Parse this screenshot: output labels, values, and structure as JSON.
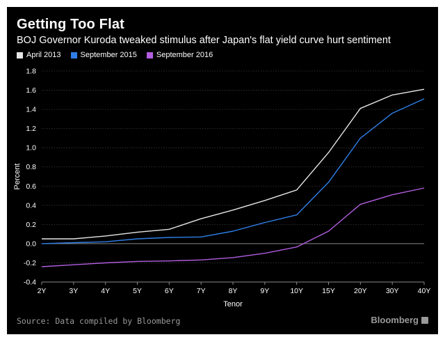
{
  "chart_data": {
    "type": "line",
    "title": "Getting Too Flat",
    "subtitle": "BOJ Governor Kuroda tweaked stimulus after Japan's flat yield curve hurt sentiment",
    "xlabel": "Tenor",
    "ylabel": "Percent",
    "categories": [
      "2Y",
      "3Y",
      "4Y",
      "5Y",
      "6Y",
      "7Y",
      "8Y",
      "9Y",
      "10Y",
      "15Y",
      "20Y",
      "30Y",
      "40Y"
    ],
    "ylim": [
      -0.4,
      1.8
    ],
    "yticks": [
      "1.8",
      "1.6",
      "1.4",
      "1.2",
      "1.0",
      "0.8",
      "0.6",
      "0.4",
      "0.2",
      "0.0",
      "-0.2",
      "-0.4"
    ],
    "grid": true,
    "legend_position": "top-left",
    "series": [
      {
        "name": "April 2013",
        "color": "#e6e6e6",
        "values": [
          0.05,
          0.05,
          0.08,
          0.12,
          0.15,
          0.26,
          0.35,
          0.45,
          0.56,
          0.95,
          1.41,
          1.55,
          1.61
        ]
      },
      {
        "name": "September 2015",
        "color": "#2f7fe8",
        "values": [
          0.0,
          0.01,
          0.02,
          0.05,
          0.065,
          0.07,
          0.13,
          0.22,
          0.3,
          0.64,
          1.1,
          1.36,
          1.51
        ]
      },
      {
        "name": "September 2016",
        "color": "#b35ee0",
        "values": [
          -0.24,
          -0.22,
          -0.2,
          -0.185,
          -0.18,
          -0.17,
          -0.145,
          -0.1,
          -0.035,
          0.13,
          0.41,
          0.51,
          0.58
        ]
      }
    ]
  },
  "footer": {
    "source": "Source: Data compiled by Bloomberg",
    "brand": "Bloomberg",
    "brand_icon": "bloomberg-logo-icon"
  }
}
